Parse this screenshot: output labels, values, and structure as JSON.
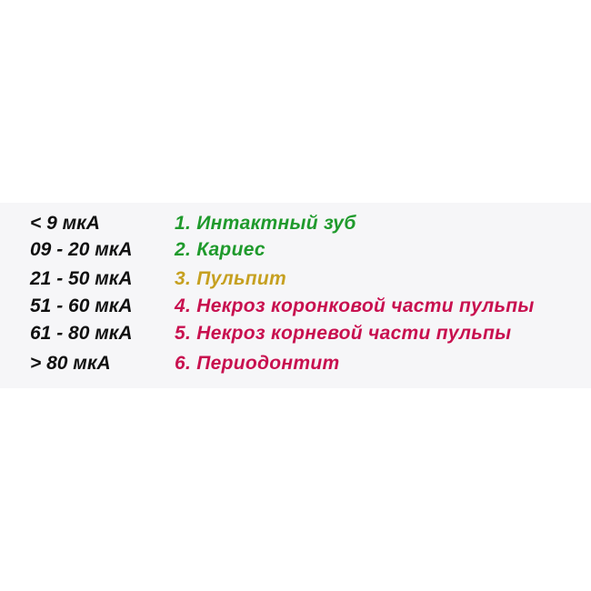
{
  "colors": {
    "green": "#1f9a2c",
    "yellow": "#c6a020",
    "crimson": "#c8104f",
    "text": "#111111",
    "panel": "#f6f6f8"
  },
  "rows": [
    {
      "range": "< 9 мкА",
      "diagnosis": "1. Интактный зуб",
      "color": "#1f9a2c"
    },
    {
      "range": "09 - 20 мкА",
      "diagnosis": "2. Кариес",
      "color": "#1f9a2c"
    },
    {
      "range": "21 - 50 мкА",
      "diagnosis": "3. Пульпит",
      "color": "#c6a020"
    },
    {
      "range": "51 - 60 мкА",
      "diagnosis": "4. Некроз коронковой части пульпы",
      "color": "#c8104f"
    },
    {
      "range": "61 - 80 мкА",
      "diagnosis": "5. Некроз корневой части пульпы",
      "color": "#c8104f"
    },
    {
      "range": "> 80 мкА",
      "diagnosis": "6. Периодонтит",
      "color": "#c8104f"
    }
  ]
}
